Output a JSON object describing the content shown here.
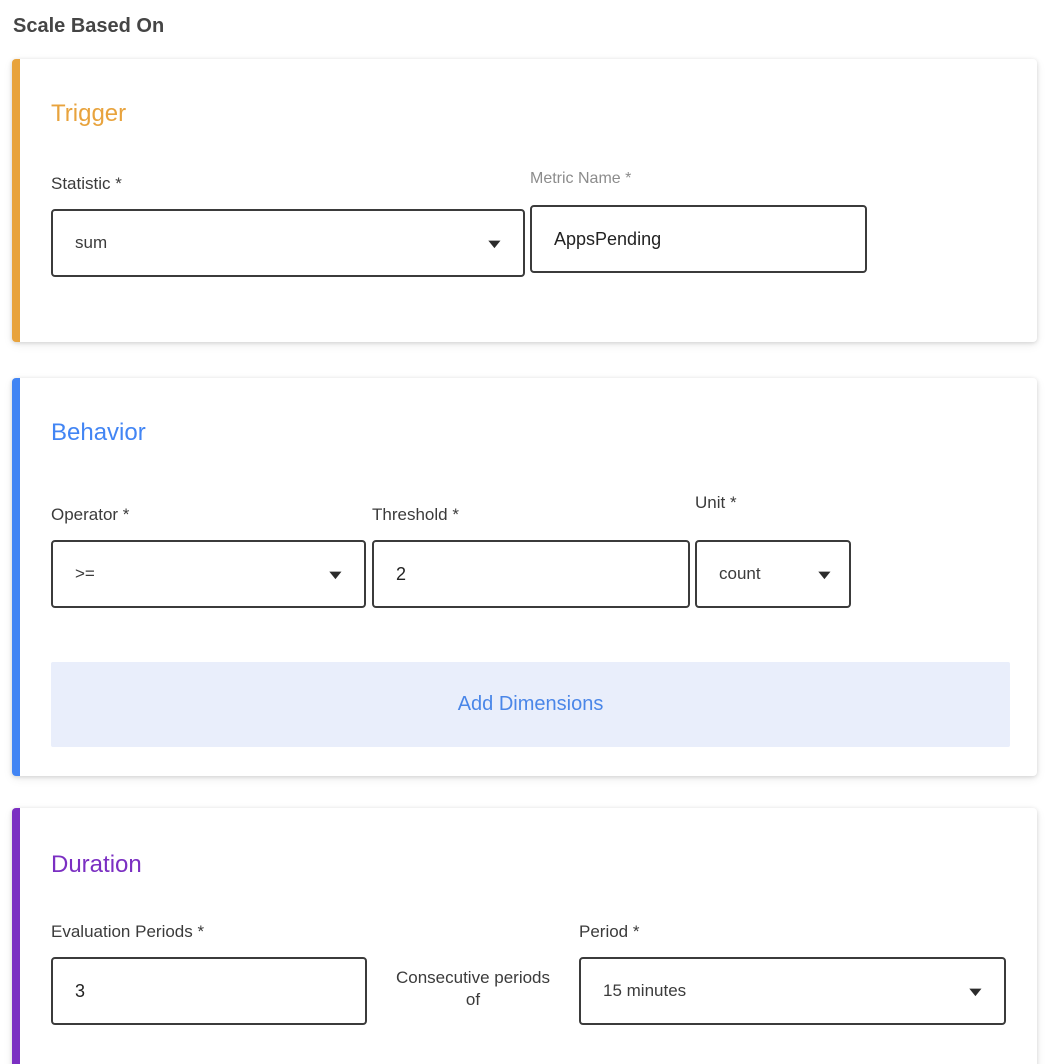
{
  "page": {
    "title": "Scale Based On"
  },
  "colors": {
    "trigger_accent": "#e8a33d",
    "behavior_accent": "#4285f4",
    "duration_accent": "#7b2fc2",
    "button_bg": "#e9eefb",
    "button_text": "#4a86e8"
  },
  "icons": {
    "dropdown_arrow": "▼"
  },
  "trigger": {
    "heading": "Trigger",
    "statistic": {
      "label": "Statistic *",
      "value": "sum"
    },
    "metric_name": {
      "label": "Metric Name *",
      "value": "AppsPending"
    }
  },
  "behavior": {
    "heading": "Behavior",
    "operator": {
      "label": "Operator *",
      "value": ">="
    },
    "threshold": {
      "label": "Threshold *",
      "value": "2"
    },
    "unit": {
      "label": "Unit *",
      "value": "count"
    },
    "add_dimensions_label": "Add Dimensions"
  },
  "duration": {
    "heading": "Duration",
    "evaluation_periods": {
      "label": "Evaluation Periods *",
      "value": "3"
    },
    "consecutive_text": "Consecutive periods of",
    "period": {
      "label": "Period *",
      "value": "15 minutes"
    }
  }
}
